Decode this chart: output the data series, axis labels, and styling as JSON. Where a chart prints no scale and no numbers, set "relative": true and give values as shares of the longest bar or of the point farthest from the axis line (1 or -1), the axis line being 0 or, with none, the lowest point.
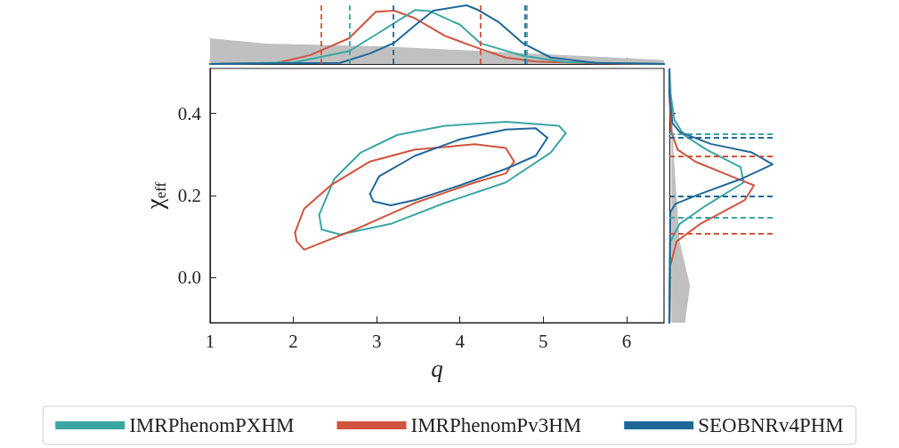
{
  "chart_data": [
    {
      "type": "line",
      "relative": true,
      "xlim": [
        1,
        6.45
      ],
      "xticks": [
        1,
        2,
        3,
        4,
        5,
        6
      ],
      "tick_labels": false,
      "marker": "none",
      "grid": false,
      "legend": false,
      "series": [
        {
          "type": "area",
          "color": "#c0c0c0",
          "x": [
            1,
            1.66,
            3.1,
            4.55,
            6.45
          ],
          "values": [
            0.44,
            0.35,
            0.3,
            0.2,
            0.07
          ]
        },
        {
          "color": "#d1533e",
          "x": [
            1,
            1.8,
            2.2,
            2.67,
            2.99,
            3.21,
            3.46,
            3.82,
            4.18,
            4.55,
            4.91,
            5.63,
            6.45
          ],
          "values": [
            0,
            0.02,
            0.15,
            0.44,
            0.89,
            0.91,
            0.78,
            0.48,
            0.29,
            0.11,
            0.04,
            0.01,
            0
          ]
        },
        {
          "color": "#3aa6a3",
          "x": [
            1,
            2.02,
            2.67,
            2.99,
            3.46,
            3.64,
            4.0,
            4.25,
            4.4,
            4.76,
            5.27,
            6.45
          ],
          "values": [
            0,
            0.03,
            0.22,
            0.5,
            0.92,
            0.9,
            0.67,
            0.35,
            0.29,
            0.14,
            0.03,
            0
          ]
        },
        {
          "color": "#1f6799",
          "x": [
            1,
            2.56,
            2.92,
            3.21,
            3.46,
            3.68,
            4.08,
            4.22,
            4.47,
            4.76,
            5.09,
            5.63,
            6.45
          ],
          "values": [
            0,
            0.02,
            0.18,
            0.36,
            0.66,
            0.91,
            1.0,
            0.92,
            0.71,
            0.35,
            0.11,
            0.02,
            0
          ]
        }
      ],
      "ref_lines": [
        {
          "axis": "x",
          "value": 2.33,
          "color": "#d1533e",
          "line_style": "dashed"
        },
        {
          "axis": "x",
          "value": 4.25,
          "color": "#d1533e",
          "line_style": "dashed"
        },
        {
          "axis": "x",
          "value": 2.67,
          "color": "#3aa6a3",
          "line_style": "dashed"
        },
        {
          "axis": "x",
          "value": 4.8,
          "color": "#3aa6a3",
          "line_style": "dashed"
        },
        {
          "axis": "x",
          "value": 3.2,
          "color": "#1f6799",
          "line_style": "dashed"
        },
        {
          "axis": "x",
          "value": 4.78,
          "color": "#1f6799",
          "line_style": "dashed"
        }
      ]
    },
    {
      "type": "line",
      "xlabel": "q",
      "ylabel": "χ$_{eff}$",
      "xlim": [
        1,
        6.45
      ],
      "ylim": [
        -0.11,
        0.51
      ],
      "xticks": [
        1,
        2,
        3,
        4,
        5,
        6
      ],
      "yticks": [
        {
          "value": 0,
          "label": "0.0"
        },
        {
          "value": 0.2,
          "label": "0.2"
        },
        {
          "value": 0.4,
          "label": "0.4"
        }
      ],
      "marker": "none",
      "grid": false,
      "legend": "bottom",
      "series": [
        {
          "name": "IMRPhenomPXHM",
          "color": "#3aa6a3",
          "x": [
            2.31,
            2.49,
            2.81,
            3.25,
            3.82,
            4.55,
            5.19,
            5.27
          ],
          "values": [
            0.153,
            0.24,
            0.305,
            0.348,
            0.37,
            0.38,
            0.37,
            0.352
          ]
        },
        {
          "color": "#3aa6a3",
          "x": [
            2.31,
            2.34,
            2.56,
            3.17,
            3.82,
            4.55,
            5.09,
            5.27
          ],
          "values": [
            0.153,
            0.117,
            0.105,
            0.131,
            0.182,
            0.232,
            0.305,
            0.352
          ]
        },
        {
          "name": "IMRPhenomPv3HM",
          "color": "#d1533e",
          "x": [
            2.02,
            2.13,
            2.45,
            2.92,
            3.46,
            4.18,
            4.55,
            4.65
          ],
          "values": [
            0.11,
            0.168,
            0.225,
            0.283,
            0.312,
            0.325,
            0.316,
            0.283
          ]
        },
        {
          "color": "#d1533e",
          "x": [
            2.02,
            2.04,
            2.13,
            2.74,
            3.46,
            4.18,
            4.55,
            4.65
          ],
          "values": [
            0.11,
            0.088,
            0.068,
            0.117,
            0.182,
            0.232,
            0.254,
            0.283
          ]
        },
        {
          "name": "SEOBNRv4PHM",
          "color": "#1f6799",
          "x": [
            2.92,
            3.03,
            3.46,
            4.0,
            4.55,
            4.91,
            5.05
          ],
          "values": [
            0.204,
            0.247,
            0.297,
            0.337,
            0.361,
            0.364,
            0.341
          ]
        },
        {
          "color": "#1f6799",
          "x": [
            2.92,
            2.96,
            3.17,
            3.46,
            4.0,
            4.55,
            4.91,
            5.05
          ],
          "values": [
            0.204,
            0.186,
            0.176,
            0.189,
            0.225,
            0.265,
            0.297,
            0.341
          ]
        }
      ]
    },
    {
      "type": "line",
      "relative": true,
      "orientation": "horizontal",
      "ylim": [
        -0.11,
        0.51
      ],
      "yticks": [
        0,
        0.2,
        0.4
      ],
      "tick_labels": false,
      "marker": "none",
      "grid": false,
      "legend": false,
      "series": [
        {
          "type": "area",
          "color": "#c0c0c0",
          "x": [
            0.507,
            0.305,
            0.088,
            -0.02,
            -0.114
          ],
          "values": [
            0.02,
            0.04,
            0.1,
            0.2,
            0.15
          ]
        },
        {
          "color": "#d1533e",
          "x": [
            -0.114,
            0.03,
            0.088,
            0.131,
            0.189,
            0.225,
            0.247,
            0.283,
            0.312,
            0.355,
            0.449,
            0.507
          ],
          "values": [
            0,
            0.01,
            0.07,
            0.3,
            0.73,
            0.82,
            0.6,
            0.25,
            0.08,
            0.02,
            0,
            0
          ]
        },
        {
          "color": "#3aa6a3",
          "x": [
            -0.114,
            0.088,
            0.131,
            0.175,
            0.232,
            0.269,
            0.312,
            0.348,
            0.384,
            0.449,
            0.507
          ],
          "values": [
            0,
            0.01,
            0.1,
            0.35,
            0.72,
            0.69,
            0.36,
            0.14,
            0.05,
            0.01,
            0
          ]
        },
        {
          "color": "#1f6799",
          "x": [
            -0.114,
            0.16,
            0.18,
            0.204,
            0.24,
            0.276,
            0.305,
            0.326,
            0.355,
            0.377,
            0.449,
            0.507
          ],
          "values": [
            0,
            0.01,
            0.06,
            0.3,
            0.69,
            1.0,
            0.8,
            0.4,
            0.1,
            0.03,
            0,
            0
          ]
        }
      ],
      "ref_lines": [
        {
          "axis": "y",
          "value": 0.108,
          "color": "#d1533e",
          "line_style": "dashed"
        },
        {
          "axis": "y",
          "value": 0.295,
          "color": "#d1533e",
          "line_style": "dashed"
        },
        {
          "axis": "y",
          "value": 0.146,
          "color": "#3aa6a3",
          "line_style": "dashed"
        },
        {
          "axis": "y",
          "value": 0.351,
          "color": "#3aa6a3",
          "line_style": "dashed"
        },
        {
          "axis": "y",
          "value": 0.199,
          "color": "#1f6799",
          "line_style": "dashed"
        },
        {
          "axis": "y",
          "value": 0.342,
          "color": "#1f6799",
          "line_style": "dashed"
        }
      ]
    }
  ]
}
